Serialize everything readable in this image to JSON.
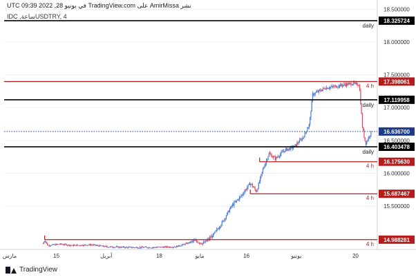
{
  "header": {
    "published_line": "نشر AmirMissa على TradingView.com في يونيو 28, 2022 09:39 UTC",
    "symbol_line": "USDTRY, 4ساعة, IDC"
  },
  "branding": {
    "logo_text": "TradingView"
  },
  "colors": {
    "bull": "#4a7bd6",
    "bear": "#e0455c",
    "red_level": "#b71c1c",
    "black_level": "#000000",
    "current_price": "#1e3a8a"
  },
  "chart_data": {
    "type": "candlestick",
    "symbol": "USDTRY",
    "interval": "4ساعة",
    "source": "IDC",
    "ylim": [
      14.86,
      18.62
    ],
    "y_ticks": [
      "18.500000",
      "18.000000",
      "17.500000",
      "17.000000",
      "16.500000",
      "16.000000",
      "15.500000"
    ],
    "x_ticks": [
      {
        "label": "مارس",
        "x": 0
      },
      {
        "label": "15",
        "x": 15
      },
      {
        "label": "أبريل",
        "x": 31
      },
      {
        "label": "18",
        "x": 48
      },
      {
        "label": "مايو",
        "x": 61
      },
      {
        "label": "16",
        "x": 76
      },
      {
        "label": "يونيو",
        "x": 92
      },
      {
        "label": "20",
        "x": 111
      }
    ],
    "levels": [
      {
        "price": 18.325724,
        "label": "18.325724",
        "tag": "daily",
        "style": "black"
      },
      {
        "price": 17.398061,
        "label": "17.398061",
        "tag": "4 h",
        "style": "red"
      },
      {
        "price": 17.119958,
        "label": "17.119958",
        "tag": "daily",
        "style": "black"
      },
      {
        "price": 16.403478,
        "label": "16.403478",
        "tag": "daily",
        "style": "black"
      },
      {
        "price": 16.17563,
        "label": "16.175630",
        "tag": "4 h",
        "style": "red"
      },
      {
        "price": 15.687467,
        "label": "15.687467",
        "tag": "4 h",
        "style": "red"
      },
      {
        "price": 14.988281,
        "label": "14.988281",
        "tag": "4 h",
        "style": "red"
      }
    ],
    "current_price": {
      "price": 16.6367,
      "label": "16.636700"
    },
    "price_path": [
      [
        0,
        14.86
      ],
      [
        12,
        14.88
      ],
      [
        13,
        14.98
      ],
      [
        14,
        14.9
      ],
      [
        18,
        14.92
      ],
      [
        22,
        14.9
      ],
      [
        28,
        14.91
      ],
      [
        33,
        14.88
      ],
      [
        40,
        14.87
      ],
      [
        48,
        14.87
      ],
      [
        55,
        14.88
      ],
      [
        58,
        14.92
      ],
      [
        61,
        14.97
      ],
      [
        64,
        14.93
      ],
      [
        67,
        15.05
      ],
      [
        70,
        15.25
      ],
      [
        73,
        15.5
      ],
      [
        76,
        15.65
      ],
      [
        79,
        15.85
      ],
      [
        81,
        15.72
      ],
      [
        83,
        16.05
      ],
      [
        85,
        16.3
      ],
      [
        87,
        16.22
      ],
      [
        90,
        16.35
      ],
      [
        93,
        16.4
      ],
      [
        96,
        16.55
      ],
      [
        98,
        16.75
      ],
      [
        99,
        17.2
      ],
      [
        101,
        17.25
      ],
      [
        103,
        17.3
      ],
      [
        106,
        17.32
      ],
      [
        109,
        17.35
      ],
      [
        112,
        17.37
      ],
      [
        114,
        17.35
      ],
      [
        115,
        16.7
      ],
      [
        116,
        16.45
      ],
      [
        117,
        16.55
      ],
      [
        118,
        16.64
      ]
    ],
    "x_domain": [
      0,
      118
    ]
  }
}
